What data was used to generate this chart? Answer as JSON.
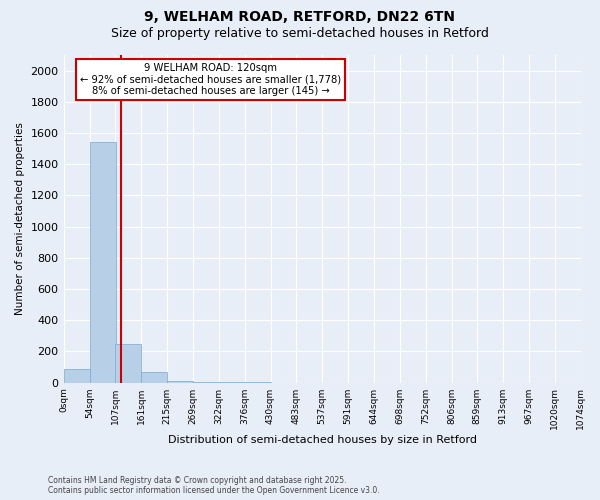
{
  "title": "9, WELHAM ROAD, RETFORD, DN22 6TN",
  "subtitle": "Size of property relative to semi-detached houses in Retford",
  "xlabel": "Distribution of semi-detached houses by size in Retford",
  "ylabel": "Number of semi-detached properties",
  "bin_labels": [
    "0sqm",
    "54sqm",
    "107sqm",
    "161sqm",
    "215sqm",
    "269sqm",
    "322sqm",
    "376sqm",
    "430sqm",
    "483sqm",
    "537sqm",
    "591sqm",
    "644sqm",
    "698sqm",
    "752sqm",
    "806sqm",
    "859sqm",
    "913sqm",
    "967sqm",
    "1020sqm",
    "1074sqm"
  ],
  "bin_edges": [
    0,
    54,
    107,
    161,
    215,
    269,
    322,
    376,
    430,
    483,
    537,
    591,
    644,
    698,
    752,
    806,
    859,
    913,
    967,
    1020,
    1074
  ],
  "bar_values": [
    90,
    1540,
    250,
    70,
    8,
    3,
    1,
    1,
    0,
    0,
    0,
    0,
    0,
    0,
    0,
    0,
    0,
    0,
    0,
    0
  ],
  "bar_color": "#b8cfe8",
  "bar_edgecolor": "#7aaad0",
  "red_line_x": 120,
  "ylim": [
    0,
    2100
  ],
  "yticks": [
    0,
    200,
    400,
    600,
    800,
    1000,
    1200,
    1400,
    1600,
    1800,
    2000
  ],
  "annotation_title": "9 WELHAM ROAD: 120sqm",
  "annotation_line1": "← 92% of semi-detached houses are smaller (1,778)",
  "annotation_line2": "8% of semi-detached houses are larger (145) →",
  "annotation_box_color": "#ffffff",
  "annotation_box_edgecolor": "#cc0000",
  "footer_line1": "Contains HM Land Registry data © Crown copyright and database right 2025.",
  "footer_line2": "Contains public sector information licensed under the Open Government Licence v3.0.",
  "background_color": "#e8eef7",
  "plot_background_color": "#e8eef7",
  "grid_color": "#ffffff",
  "title_fontsize": 10,
  "subtitle_fontsize": 9
}
